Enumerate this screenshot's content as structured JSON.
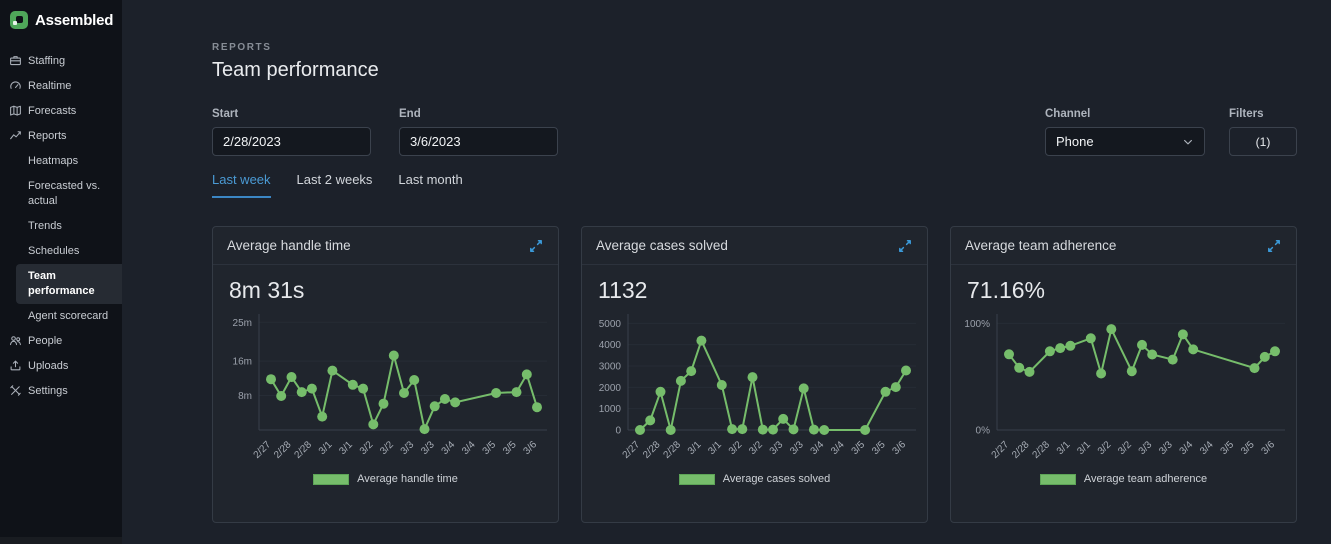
{
  "app": {
    "name": "Assembled"
  },
  "sidebar": {
    "items": [
      {
        "label": "Staffing",
        "icon": "staffing"
      },
      {
        "label": "Realtime",
        "icon": "realtime"
      },
      {
        "label": "Forecasts",
        "icon": "forecasts"
      },
      {
        "label": "Reports",
        "icon": "reports"
      },
      {
        "label": "Heatmaps",
        "sub": true
      },
      {
        "label": "Forecasted vs. actual",
        "sub": true
      },
      {
        "label": "Trends",
        "sub": true
      },
      {
        "label": "Schedules",
        "sub": true
      },
      {
        "label": "Team performance",
        "sub": true,
        "active": true
      },
      {
        "label": "Agent scorecard",
        "sub": true
      },
      {
        "label": "People",
        "icon": "people"
      },
      {
        "label": "Uploads",
        "icon": "uploads"
      },
      {
        "label": "Settings",
        "icon": "settings"
      }
    ]
  },
  "header": {
    "eyebrow": "REPORTS",
    "title": "Team performance"
  },
  "filters": {
    "start": {
      "label": "Start",
      "value": "2/28/2023"
    },
    "end": {
      "label": "End",
      "value": "3/6/2023"
    },
    "channel": {
      "label": "Channel",
      "value": "Phone"
    },
    "filters_button": {
      "label": "Filters",
      "value": "(1)"
    },
    "quick_ranges": [
      {
        "label": "Last week",
        "active": true
      },
      {
        "label": "Last 2 weeks",
        "active": false
      },
      {
        "label": "Last month",
        "active": false
      }
    ]
  },
  "colors": {
    "series_green": "#76bd6b",
    "accent_blue": "#3b9ad9",
    "link_blue": "#4a9ad4"
  },
  "chart_data": [
    {
      "type": "line",
      "title": "Average handle time",
      "summary_value": "8m 31s",
      "legend": "Average handle time",
      "unit": "minutes",
      "x_slot_count": 27,
      "x_tick_labels": [
        "2/27",
        "2/28",
        "2/28",
        "3/1",
        "3/1",
        "3/2",
        "3/2",
        "3/3",
        "3/3",
        "3/4",
        "3/4",
        "3/5",
        "3/5",
        "3/6"
      ],
      "ylim": [
        0,
        26
      ],
      "yticks": [
        {
          "value": 8,
          "label": "8m"
        },
        {
          "value": 16,
          "label": "16m"
        },
        {
          "value": 25,
          "label": "25m"
        }
      ],
      "series": [
        {
          "name": "Average handle time",
          "points": [
            [
              0,
              11.8
            ],
            [
              1,
              7.9
            ],
            [
              2,
              12.3
            ],
            [
              3,
              8.8
            ],
            [
              4,
              9.6
            ],
            [
              5,
              3.1
            ],
            [
              6,
              13.8
            ],
            [
              8,
              10.5
            ],
            [
              9,
              9.6
            ],
            [
              10,
              1.3
            ],
            [
              11,
              6.1
            ],
            [
              12,
              17.3
            ],
            [
              13,
              8.6
            ],
            [
              14,
              11.6
            ],
            [
              15,
              0.2
            ],
            [
              16,
              5.5
            ],
            [
              17,
              7.2
            ],
            [
              18,
              6.4
            ],
            [
              22,
              8.6
            ],
            [
              24,
              8.8
            ],
            [
              25,
              12.9
            ],
            [
              26,
              5.3
            ]
          ]
        }
      ]
    },
    {
      "type": "line",
      "title": "Average cases solved",
      "summary_value": "1132",
      "legend": "Average cases solved",
      "unit": "cases",
      "x_slot_count": 27,
      "x_tick_labels": [
        "2/27",
        "2/28",
        "2/28",
        "3/1",
        "3/1",
        "3/2",
        "3/2",
        "3/3",
        "3/3",
        "3/4",
        "3/4",
        "3/5",
        "3/5",
        "3/6"
      ],
      "ylim": [
        0,
        5250
      ],
      "yticks": [
        {
          "value": 0,
          "label": "0"
        },
        {
          "value": 1000,
          "label": "1000"
        },
        {
          "value": 2000,
          "label": "2000"
        },
        {
          "value": 3000,
          "label": "3000"
        },
        {
          "value": 4000,
          "label": "4000"
        },
        {
          "value": 5000,
          "label": "5000"
        }
      ],
      "series": [
        {
          "name": "Average cases solved",
          "points": [
            [
              0,
              0
            ],
            [
              1,
              450
            ],
            [
              2,
              1790
            ],
            [
              3,
              0
            ],
            [
              4,
              2300
            ],
            [
              5,
              2760
            ],
            [
              6,
              4190
            ],
            [
              8,
              2110
            ],
            [
              9,
              40
            ],
            [
              10,
              40
            ],
            [
              11,
              2480
            ],
            [
              12,
              20
            ],
            [
              13,
              20
            ],
            [
              14,
              520
            ],
            [
              15,
              30
            ],
            [
              16,
              1950
            ],
            [
              17,
              20
            ],
            [
              18,
              0
            ],
            [
              22,
              0
            ],
            [
              24,
              1790
            ],
            [
              25,
              2010
            ],
            [
              26,
              2790
            ]
          ]
        }
      ]
    },
    {
      "type": "line",
      "title": "Average team adherence",
      "summary_value": "71.16%",
      "legend": "Average team adherence",
      "unit": "percent",
      "x_slot_count": 27,
      "x_tick_labels": [
        "2/27",
        "2/28",
        "2/28",
        "3/1",
        "3/1",
        "3/2",
        "3/2",
        "3/3",
        "3/3",
        "3/4",
        "3/4",
        "3/5",
        "3/5",
        "3/6"
      ],
      "ylim": [
        0,
        105
      ],
      "yticks": [
        {
          "value": 0,
          "label": "0%"
        },
        {
          "value": 100,
          "label": "100%"
        }
      ],
      "series": [
        {
          "name": "Average team adherence",
          "points": [
            [
              0,
              71
            ],
            [
              1,
              58.3
            ],
            [
              2,
              54.5
            ],
            [
              4,
              73.8
            ],
            [
              5,
              76.8
            ],
            [
              6,
              78.9
            ],
            [
              8,
              86
            ],
            [
              9,
              53
            ],
            [
              10,
              94.6
            ],
            [
              12,
              55.1
            ],
            [
              13,
              79.8
            ],
            [
              14,
              70.8
            ],
            [
              16,
              66
            ],
            [
              17,
              89.6
            ],
            [
              18,
              75.6
            ],
            [
              24,
              58
            ],
            [
              25,
              68.5
            ],
            [
              26,
              73.8
            ]
          ]
        }
      ]
    }
  ]
}
